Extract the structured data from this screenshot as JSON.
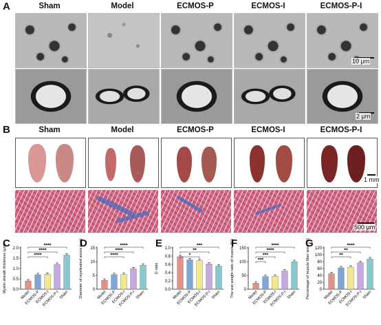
{
  "panel_labels": {
    "A": "A",
    "B": "B",
    "C": "C",
    "D": "D",
    "E": "E",
    "F": "F",
    "G": "G"
  },
  "groups_top": [
    "Sham",
    "Model",
    "ECMOS-P",
    "ECMOS-I",
    "ECMOS-P-I"
  ],
  "scale_bars": {
    "em_low": "10 μm",
    "em_high": "2 μm",
    "photo": "1 mm",
    "histo": "500 μm"
  },
  "colors": {
    "Model": "#e48f88",
    "ECMOS-P": "#7fa6d8",
    "ECMOS-I": "#f2e98a",
    "ECMOS-P-I": "#c8a8e0",
    "Sham": "#88c9d0"
  },
  "chart_data": [
    {
      "type": "bar",
      "panel": "C",
      "categories": [
        "Model",
        "ECMOS-P",
        "ECMOS-I",
        "ECMOS-P-I",
        "Sham"
      ],
      "values": [
        0.4,
        0.7,
        0.72,
        1.2,
        1.65
      ],
      "ylabel": "Myelin sheath thickness (μm)",
      "ylim": [
        0,
        2.0
      ],
      "yticks": [
        "0.0",
        "0.5",
        "1.0",
        "1.5",
        "2.0"
      ],
      "significance": [
        "****",
        "****",
        "****"
      ]
    },
    {
      "type": "bar",
      "panel": "D",
      "categories": [
        "Model",
        "ECMOS-P",
        "ECMOS-I",
        "ECMOS-P-I",
        "Sham"
      ],
      "values": [
        3.2,
        5.3,
        5.3,
        7.4,
        8.7
      ],
      "ylabel": "Diameter of myelinated axons (μm)",
      "ylim": [
        0,
        15
      ],
      "yticks": [
        "0",
        "5",
        "10",
        "15"
      ],
      "significance": [
        "****",
        "****",
        "****"
      ]
    },
    {
      "type": "bar",
      "panel": "E",
      "categories": [
        "Model",
        "ECMOS-P",
        "ECMOS-I",
        "ECMOS-P-I",
        "Sham"
      ],
      "values": [
        0.79,
        0.71,
        0.69,
        0.61,
        0.56
      ],
      "ylabel": "G ratio",
      "ylim": [
        0,
        1.0
      ],
      "yticks": [
        "0.0",
        "0.2",
        "0.4",
        "0.6",
        "0.8",
        "1.0"
      ],
      "significance": [
        "***",
        "**",
        "*"
      ]
    },
    {
      "type": "bar",
      "panel": "F",
      "categories": [
        "Model",
        "ECMOS-P",
        "ECMOS-I",
        "ECMOS-P-I",
        "Sham"
      ],
      "values": [
        22,
        46,
        47,
        66,
        100
      ],
      "ylabel": "The wet weight ratio of muscle (%)",
      "ylim": [
        0,
        150
      ],
      "yticks": [
        "0",
        "50",
        "100",
        "150"
      ],
      "significance": [
        "****",
        "****",
        "***",
        "***"
      ]
    },
    {
      "type": "bar",
      "panel": "G",
      "categories": [
        "Model",
        "ECMOS-P",
        "ECMOS-I",
        "ECMOS-P-I",
        "Sham"
      ],
      "values": [
        45,
        62,
        64,
        77,
        88
      ],
      "ylabel": "Percentage of muscle fiber area (%)",
      "ylim": [
        0,
        120
      ],
      "yticks": [
        "0",
        "20",
        "40",
        "60",
        "80",
        "100",
        "120"
      ],
      "significance": [
        "****",
        "**",
        "**"
      ]
    }
  ]
}
